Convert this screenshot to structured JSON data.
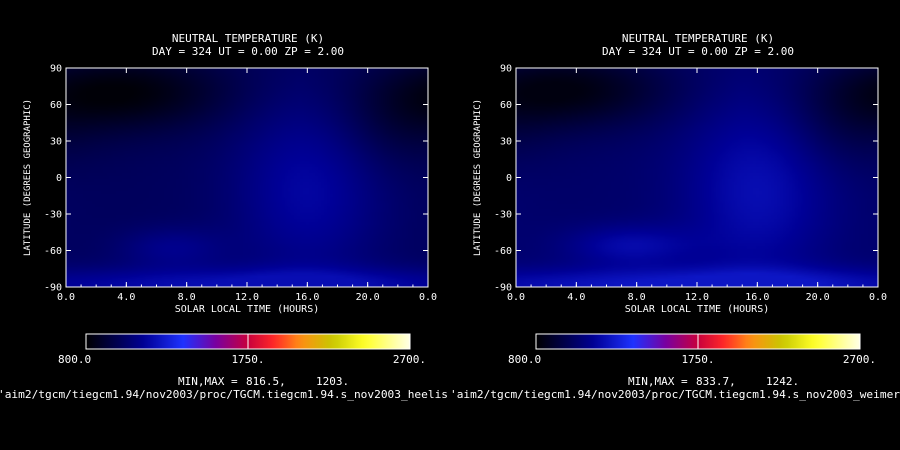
{
  "chart_data": [
    {
      "type": "heatmap",
      "title": "NEUTRAL TEMPERATURE (K)",
      "subtitle": "DAY = 324   UT =  0.00   ZP =    2.00",
      "xlabel": "SOLAR LOCAL TIME (HOURS)",
      "ylabel": "LATITUDE (DEGREES GEOGRAPHIC)",
      "x_ticks": [
        "0.0",
        "4.0",
        "8.0",
        "12.0",
        "16.0",
        "20.0",
        "0.0"
      ],
      "y_ticks": [
        "90",
        "60",
        "30",
        "0",
        "-30",
        "-60",
        "-90"
      ],
      "xlim": [
        0,
        24
      ],
      "ylim": [
        -90,
        90
      ],
      "colorbar": {
        "min_label": "800.0",
        "mid_label": "1750.",
        "max_label": "2700.",
        "range": [
          800,
          2700
        ]
      },
      "minmax_label": "MIN,MAX =",
      "min_value": "816.5,",
      "max_value": "1203.",
      "values_min": 816.5,
      "values_max": 1203,
      "blobs": [
        {
          "x": 3.5,
          "y": 70,
          "sx": 5.0,
          "sy": 22,
          "amp": -1.0
        },
        {
          "x": 16.0,
          "y": -10,
          "sx": 3.5,
          "sy": 55,
          "amp": 0.8
        },
        {
          "x": 7.0,
          "y": -58,
          "sx": 2.5,
          "sy": 12,
          "amp": 0.55
        },
        {
          "x": 12.0,
          "y": -88,
          "sx": 14,
          "sy": 10,
          "amp": 0.95
        },
        {
          "x": 22.0,
          "y": 40,
          "sx": 3.0,
          "sy": 25,
          "amp": -0.35
        }
      ],
      "source_path": "'aim2/tgcm/tiegcm1.94/nov2003/proc/TGCM.tiegcm1.94.s_nov2003_heelis"
    },
    {
      "type": "heatmap",
      "title": "NEUTRAL TEMPERATURE (K)",
      "subtitle": "DAY = 324   UT =  0.00   ZP =    2.00",
      "xlabel": "SOLAR LOCAL TIME (HOURS)",
      "ylabel": "LATITUDE (DEGREES GEOGRAPHIC)",
      "x_ticks": [
        "0.0",
        "4.0",
        "8.0",
        "12.0",
        "16.0",
        "20.0",
        "0.0"
      ],
      "y_ticks": [
        "90",
        "60",
        "30",
        "0",
        "-30",
        "-60",
        "-90"
      ],
      "xlim": [
        0,
        24
      ],
      "ylim": [
        -90,
        90
      ],
      "colorbar": {
        "min_label": "800.0",
        "mid_label": "1750.",
        "max_label": "2700.",
        "range": [
          800,
          2700
        ]
      },
      "minmax_label": "MIN,MAX =",
      "min_value": "833.7,",
      "max_value": "1242.",
      "values_min": 833.7,
      "values_max": 1242,
      "blobs": [
        {
          "x": 3.0,
          "y": 72,
          "sx": 5.0,
          "sy": 22,
          "amp": -1.0
        },
        {
          "x": 16.0,
          "y": -10,
          "sx": 3.5,
          "sy": 55,
          "amp": 0.8
        },
        {
          "x": 7.5,
          "y": -56,
          "sx": 3.0,
          "sy": 12,
          "amp": 0.7
        },
        {
          "x": 12.0,
          "y": -88,
          "sx": 14,
          "sy": 10,
          "amp": 1.0
        },
        {
          "x": 22.0,
          "y": 40,
          "sx": 3.0,
          "sy": 25,
          "amp": -0.35
        }
      ],
      "source_path": "'aim2/tgcm/tiegcm1.94/nov2003/proc/TGCM.tiegcm1.94.s_nov2003_weimer"
    }
  ]
}
